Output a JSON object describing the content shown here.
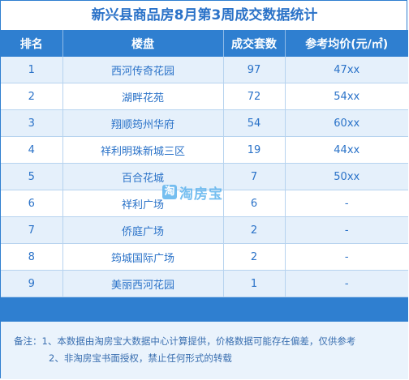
{
  "title": "新兴县商品房8月第3周成交数据统计",
  "headers": [
    "排名",
    "楼盘",
    "成交套数",
    "参考均价(元/㎡)"
  ],
  "rows": [
    {
      "rank": "1",
      "name": "西河传奇花园",
      "units": "97",
      "price": "47xx"
    },
    {
      "rank": "2",
      "name": "湖畔花苑",
      "units": "72",
      "price": "54xx"
    },
    {
      "rank": "3",
      "name": "翔顺筠州华府",
      "units": "54",
      "price": "60xx"
    },
    {
      "rank": "4",
      "name": "祥利明珠新城三区",
      "units": "19",
      "price": "44xx"
    },
    {
      "rank": "5",
      "name": "百合花城",
      "units": "7",
      "price": "50xx"
    },
    {
      "rank": "6",
      "name": "祥利广场",
      "units": "6",
      "price": "-"
    },
    {
      "rank": "7",
      "name": "侨庭广场",
      "units": "2",
      "price": "-"
    },
    {
      "rank": "8",
      "name": "筠城国际广场",
      "units": "2",
      "price": "-"
    },
    {
      "rank": "9",
      "name": "美丽西河花园",
      "units": "1",
      "price": "-"
    }
  ],
  "notes": {
    "line1": "备注：1、本数据由淘房宝大数据中心计算提供，价格数据可能存在偏差，仅供参考",
    "line2": "2、非淘房宝书面授权，禁止任何形式的转载"
  },
  "watermark": {
    "mark": "淘",
    "text": "淘房宝"
  },
  "colors": {
    "accent": "#2f7fd0",
    "text": "#2a72c8",
    "row_alt": "#e5f0fb"
  }
}
